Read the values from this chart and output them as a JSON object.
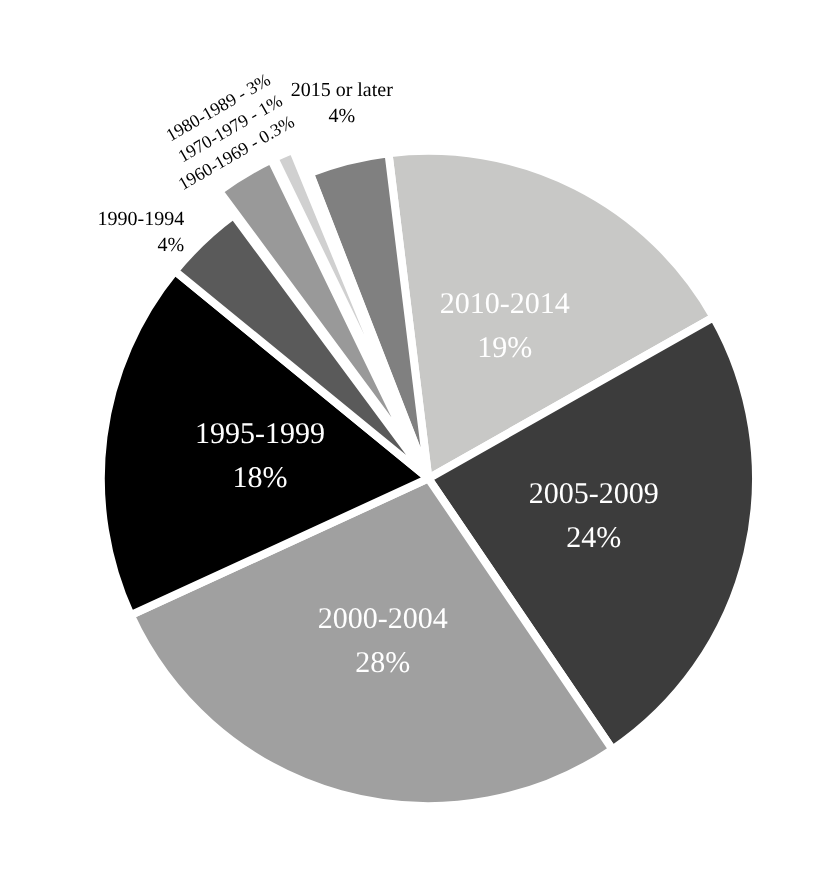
{
  "chart_data": {
    "type": "pie",
    "categories": [
      "2010-2014",
      "2005-2009",
      "2000-2004",
      "1995-1999",
      "1990-1994",
      "1980-1989",
      "1970-1979",
      "1960-1969",
      "2015 or later"
    ],
    "values": [
      19,
      24,
      28,
      18,
      4,
      3,
      1,
      0.3,
      4
    ],
    "value_labels": [
      "19%",
      "24%",
      "28%",
      "18%",
      "4%",
      "3%",
      "1%",
      "0.3%",
      "4%"
    ],
    "colors": [
      "#c8c8c6",
      "#3c3c3c",
      "#a0a0a0",
      "#000000",
      "#5a5a5a",
      "#999999",
      "#d0d0d0",
      "#555555",
      "#808080"
    ],
    "data_labels": true,
    "legend": false
  }
}
